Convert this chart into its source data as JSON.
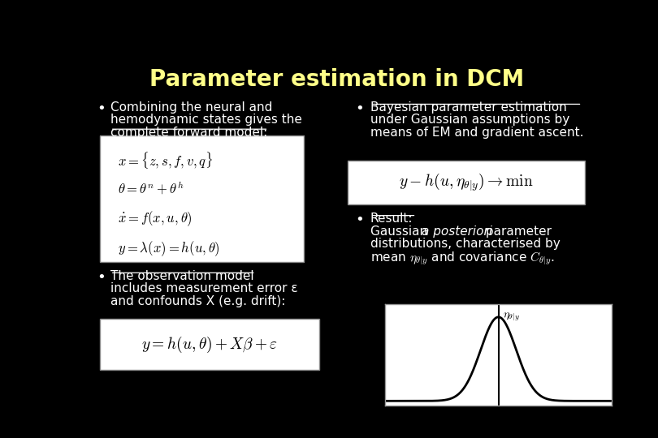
{
  "title": "Parameter estimation in DCM",
  "title_color": "#FFFF88",
  "background_color": "#000000",
  "text_color": "#FFFFFF",
  "box_bg": "#FFFFFF",
  "box_text_color": "#000000",
  "bullet1_line1": "Combining the neural and",
  "bullet1_line2": "hemodynamic states gives the",
  "bullet1_line3": "complete forward model:",
  "bullet2_line1": "The observation model",
  "bullet2_line2": "includes measurement error ε",
  "bullet2_line3": "and confounds X (e.g. drift):",
  "bullet3_line1": "Bayesian parameter estimation",
  "bullet3_line2": "under Gaussian assumptions by",
  "bullet3_line3": "means of EM and gradient ascent.",
  "bullet4_line1": "Result:",
  "bullet4_line2a": "Gaussian ",
  "bullet4_line2b": "a posteriori",
  "bullet4_line2c": " parameter",
  "bullet4_line3": "distributions, characterised by"
}
